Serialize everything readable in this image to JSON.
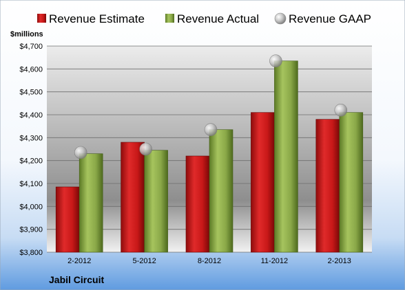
{
  "chart_data": {
    "type": "bar",
    "title": "",
    "ylabel": "$millions",
    "xlabel": "",
    "footer": "Jabil Circuit",
    "categories": [
      "2-2012",
      "5-2012",
      "8-2012",
      "11-2012",
      "2-2013"
    ],
    "series": [
      {
        "name": "Revenue Estimate",
        "kind": "bar",
        "color": "#d42020",
        "values": [
          4085,
          4280,
          4220,
          4410,
          4380
        ]
      },
      {
        "name": "Revenue Actual",
        "kind": "bar",
        "color": "#8fae4a",
        "values": [
          4230,
          4245,
          4335,
          4635,
          4410
        ]
      },
      {
        "name": "Revenue GAAP",
        "kind": "marker",
        "color": "#b8b8b8",
        "values": [
          4235,
          4250,
          4335,
          4635,
          4420
        ]
      }
    ],
    "ylim": [
      3800,
      4700
    ],
    "yticks": [
      3800,
      3900,
      4000,
      4100,
      4200,
      4300,
      4400,
      4500,
      4600,
      4700
    ],
    "ytick_labels": [
      "$3,800",
      "$3,900",
      "$4,000",
      "$4,100",
      "$4,200",
      "$4,300",
      "$4,400",
      "$4,500",
      "$4,600",
      "$4,700"
    ],
    "grid": true,
    "legend_position": "top"
  }
}
